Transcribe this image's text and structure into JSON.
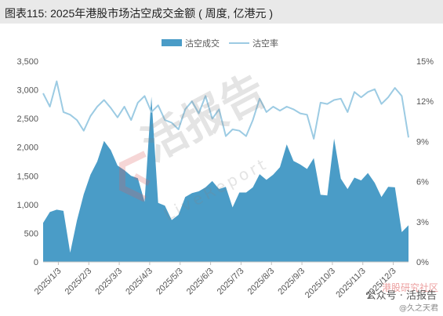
{
  "title": "图表115: 2025年港股市场沽空成交金额 ( 周度, 亿港元 )",
  "watermark": {
    "main": "活报告",
    "sub": "LiveReport",
    "brand": "公众号 · 活报告",
    "brand_sub": "@久之天君",
    "site": "港股研究社区"
  },
  "colors": {
    "bar": "#4a9cc7",
    "line": "#9ccbe3",
    "axis": "#bfbfbf",
    "text": "#555555"
  },
  "chart_data": {
    "type": "area",
    "legend_position": "top",
    "x_tick_labels": [
      "2025/1/3",
      "2025/2/3",
      "2025/3/3",
      "2025/4/3",
      "2025/5/3",
      "2025/6/3",
      "2025/7/3",
      "2025/8/3",
      "2025/9/3",
      "2025/10/3",
      "2025/11/3",
      "2025/12/3"
    ],
    "y_left": {
      "min": 0,
      "max": 3500,
      "ticks": [
        "0",
        "500",
        "1,000",
        "1,500",
        "2,000",
        "2,500",
        "3,000",
        "3,500"
      ]
    },
    "y_right": {
      "min": 0,
      "max": 15,
      "ticks": [
        "0%",
        "3%",
        "6%",
        "9%",
        "12%",
        "15%"
      ]
    },
    "series": [
      {
        "name": "沽空成交",
        "axis": "left",
        "kind": "area",
        "values": [
          680,
          870,
          910,
          890,
          160,
          720,
          1180,
          1520,
          1750,
          2110,
          1950,
          1680,
          1600,
          1500,
          1460,
          1050,
          2880,
          1030,
          980,
          730,
          820,
          1130,
          1200,
          1230,
          1300,
          1410,
          1270,
          1310,
          950,
          1210,
          1210,
          1300,
          1530,
          1430,
          1520,
          1650,
          2050,
          1760,
          1700,
          1620,
          1810,
          1170,
          1160,
          2150,
          1450,
          1270,
          1470,
          1420,
          1550,
          1380,
          1130,
          1310,
          1300,
          520,
          640
        ]
      },
      {
        "name": "沽空率",
        "axis": "right",
        "kind": "line",
        "values": [
          12.6,
          11.6,
          13.5,
          11.2,
          11.0,
          10.6,
          9.8,
          10.9,
          11.6,
          12.1,
          11.5,
          10.8,
          11.6,
          10.6,
          11.9,
          12.4,
          11.2,
          11.7,
          10.6,
          10.4,
          9.9,
          11.4,
          12.0,
          11.1,
          12.4,
          10.7,
          11.4,
          9.4,
          9.9,
          9.8,
          9.4,
          10.6,
          12.2,
          11.2,
          11.6,
          11.3,
          11.6,
          11.4,
          11.1,
          11.0,
          9.2,
          11.9,
          11.8,
          12.1,
          12.2,
          11.2,
          12.7,
          12.3,
          12.7,
          12.9,
          11.8,
          12.3,
          13.0,
          12.4,
          9.3
        ]
      }
    ]
  }
}
